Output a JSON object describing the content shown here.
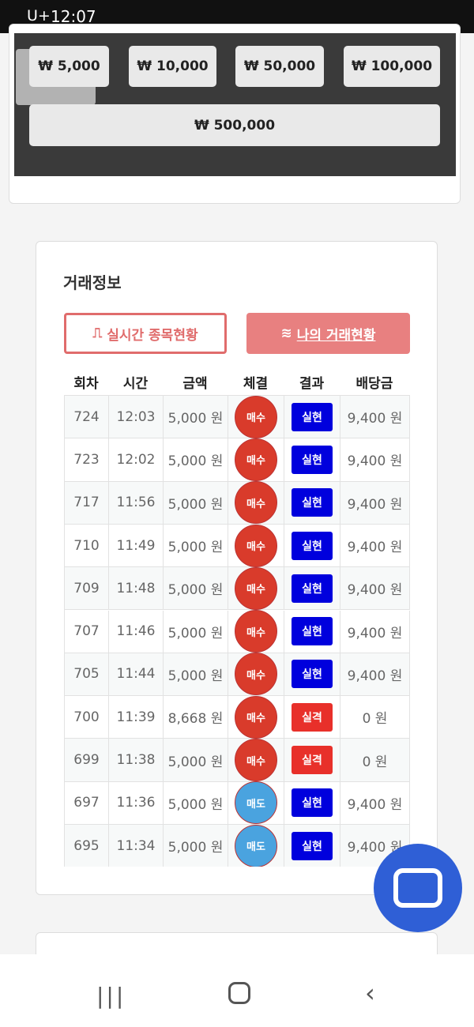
{
  "status_bar": {
    "carrier": "U+",
    "time": "12:07"
  },
  "amount_buttons": [
    "₩ 5,000",
    "₩ 10,000",
    "₩ 50,000",
    "₩ 100,000",
    "₩ 500,000"
  ],
  "section": {
    "title": "거래정보",
    "tabs": [
      "실시간 종목현황",
      "나의 거래현황"
    ]
  },
  "table": {
    "headers": [
      "회차",
      "시간",
      "금액",
      "체결",
      "결과",
      "배당금"
    ],
    "rows": [
      [
        "724",
        "12:03",
        "5,000 원",
        "매수",
        "실현",
        "9,400 원"
      ],
      [
        "723",
        "12:02",
        "5,000 원",
        "매수",
        "실현",
        "9,400 원"
      ],
      [
        "717",
        "11:56",
        "5,000 원",
        "매수",
        "실현",
        "9,400 원"
      ],
      [
        "710",
        "11:49",
        "5,000 원",
        "매수",
        "실현",
        "9,400 원"
      ],
      [
        "709",
        "11:48",
        "5,000 원",
        "매수",
        "실현",
        "9,400 원"
      ],
      [
        "707",
        "11:46",
        "5,000 원",
        "매수",
        "실현",
        "9,400 원"
      ],
      [
        "705",
        "11:44",
        "5,000 원",
        "매수",
        "실현",
        "9,400 원"
      ],
      [
        "700",
        "11:39",
        "8,668 원",
        "매수",
        "실격",
        "0 원"
      ],
      [
        "699",
        "11:38",
        "5,000 원",
        "매수",
        "실격",
        "0 원"
      ],
      [
        "697",
        "11:36",
        "5,000 원",
        "매도",
        "실현",
        "9,400 원"
      ],
      [
        "695",
        "11:34",
        "5,000 원",
        "매도",
        "실현",
        "9,400 원"
      ]
    ]
  }
}
